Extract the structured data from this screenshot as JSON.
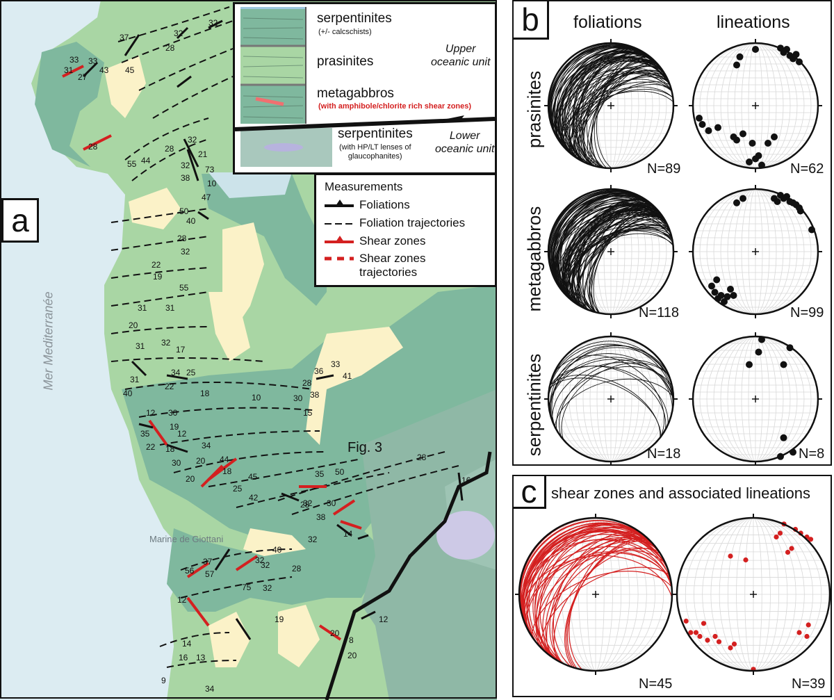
{
  "panels": {
    "a": "a",
    "b": "b",
    "c": "c"
  },
  "map": {
    "sea_label": "Mer Mediterranée",
    "place_label": "Marine de Giottani",
    "fig_ref": "Fig. 3",
    "dip_labels": [
      "32",
      "37",
      "32",
      "28",
      "33",
      "45",
      "43",
      "31",
      "27",
      "33",
      "28",
      "55",
      "44",
      "28",
      "32",
      "21",
      "32",
      "73",
      "38",
      "10",
      "47",
      "50",
      "40",
      "28",
      "32",
      "22",
      "19",
      "55",
      "31",
      "31",
      "20",
      "31",
      "32",
      "17",
      "34",
      "25",
      "31",
      "22",
      "40",
      "18",
      "10",
      "30",
      "15",
      "28",
      "36",
      "33",
      "41",
      "38",
      "12",
      "30",
      "35",
      "19",
      "12",
      "22",
      "18",
      "34",
      "30",
      "20",
      "44",
      "20",
      "18",
      "45",
      "25",
      "42",
      "35",
      "50",
      "32",
      "30",
      "28",
      "16",
      "28",
      "38",
      "32",
      "14",
      "40",
      "32",
      "28",
      "56",
      "37",
      "57",
      "32",
      "75",
      "12",
      "14",
      "16",
      "13",
      "34",
      "9",
      "32",
      "19",
      "20",
      "8",
      "20",
      "12"
    ]
  },
  "stratigraphy": {
    "serpentinites_upper": "serpentinites",
    "serpentinites_upper_note": "(+/- calcschists)",
    "prasinites": "prasinites",
    "upper_unit": "Upper\noceanic unit",
    "metagabbros": "metagabbros",
    "metagabbros_note": "(with amphibole/chlorite rich shear zones)",
    "serpentinites_lower": "serpentinites",
    "serpentinites_lower_note": "(with HP/LT lenses of\nglaucophanites)",
    "lower_unit": "Lower\noceanic unit"
  },
  "legend": {
    "title": "Measurements",
    "foliations": "Foliations",
    "foliation_trajectories": "Foliation trajectories",
    "shear_zones": "Shear zones",
    "shear_zone_trajectories": "Shear zones\ntrajectories"
  },
  "stereonets": {
    "col_foliations": "foliations",
    "col_lineations": "lineations",
    "rows": [
      {
        "name": "prasinites",
        "n_fol": "N=89",
        "n_lin": "N=62"
      },
      {
        "name": "metagabbros",
        "n_fol": "N=118",
        "n_lin": "N=99"
      },
      {
        "name": "serpentinites",
        "n_fol": "N=18",
        "n_lin": "N=8"
      }
    ],
    "shear_title": "shear zones and associated lineations",
    "shear_n_fol": "N=45",
    "shear_n_lin": "N=39"
  },
  "colors": {
    "sea": "#dcecf2",
    "prasinite": "#a9d6a4",
    "metagabbro": "#7fb89e",
    "serpentinite": "#8fb8a6",
    "alluvium": "#fbf2c8",
    "lens": "#cdc9e6",
    "shear": "#d42020",
    "ink": "#111111"
  }
}
